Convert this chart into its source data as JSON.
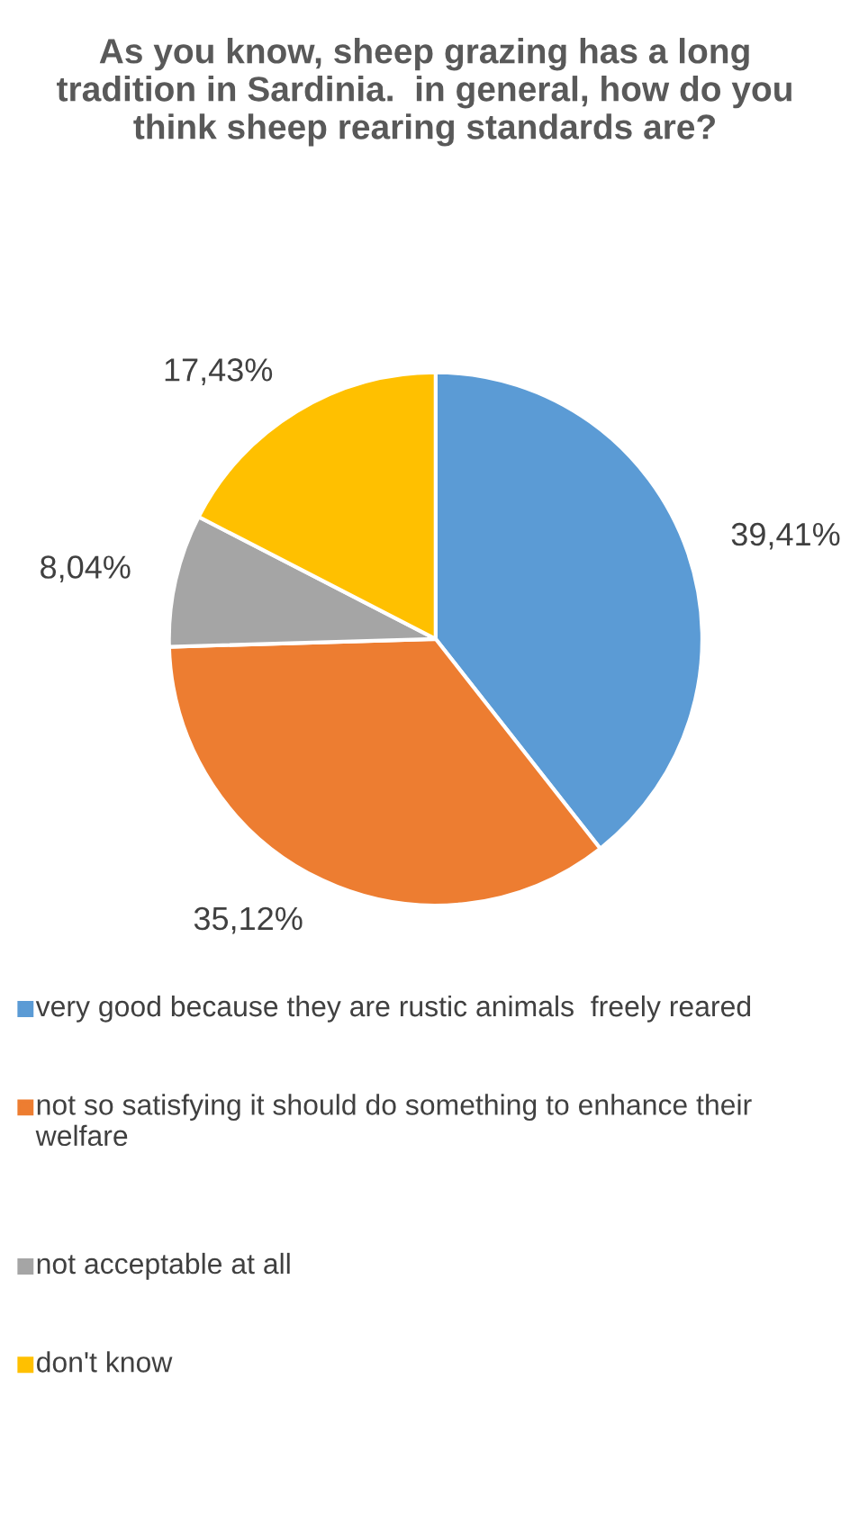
{
  "chart_data": {
    "type": "pie",
    "title": "As you know, sheep grazing has a long tradition in Sardinia.  in general, how do you think sheep rearing standards are?",
    "categories": [
      "very good because they are rustic animals  freely reared",
      "not so satisfying it should do something to enhance their welfare",
      "not acceptable at all",
      "don't know"
    ],
    "values": [
      39.41,
      35.12,
      8.04,
      17.43
    ],
    "value_labels": [
      "39,41%",
      "35,12%",
      "8,04%",
      "17,43%"
    ],
    "colors": [
      "#5b9bd5",
      "#ed7d31",
      "#a5a5a5",
      "#ffc000"
    ],
    "legend": "bottom"
  }
}
